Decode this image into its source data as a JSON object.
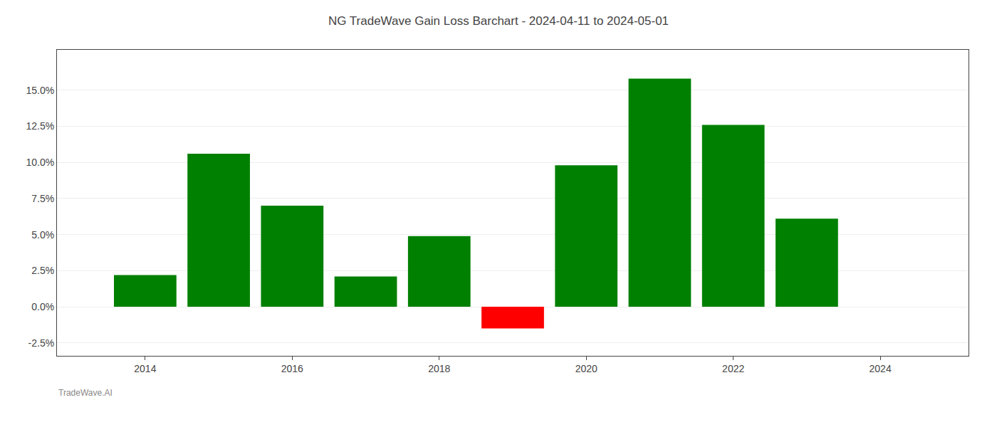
{
  "chart_data": {
    "type": "bar",
    "title": "NG TradeWave Gain Loss Barchart - 2024-04-11 to 2024-05-01",
    "annotations": [
      "TradeWave.AI"
    ],
    "x": [
      2014,
      2015,
      2016,
      2017,
      2018,
      2019,
      2020,
      2021,
      2022,
      2023
    ],
    "values": [
      0.022,
      0.106,
      0.07,
      0.021,
      0.049,
      -0.015,
      0.098,
      0.158,
      0.126,
      0.061
    ],
    "colors": [
      "#008000",
      "#008000",
      "#008000",
      "#008000",
      "#008000",
      "#ff0000",
      "#008000",
      "#008000",
      "#008000",
      "#008000"
    ],
    "xlim": [
      2012.8,
      2025.2
    ],
    "xticks": [
      2014,
      2016,
      2018,
      2020,
      2022,
      2024
    ],
    "ylim": [
      -0.034,
      0.178
    ],
    "yticks": [
      {
        "value": -0.025,
        "label": "-2.5%"
      },
      {
        "value": 0.0,
        "label": "0.0%"
      },
      {
        "value": 0.025,
        "label": "2.5%"
      },
      {
        "value": 0.05,
        "label": "5.0%"
      },
      {
        "value": 0.075,
        "label": "7.5%"
      },
      {
        "value": 0.1,
        "label": "10.0%"
      },
      {
        "value": 0.125,
        "label": "12.5%"
      },
      {
        "value": 0.15,
        "label": "15.0%"
      }
    ],
    "grid": true
  }
}
